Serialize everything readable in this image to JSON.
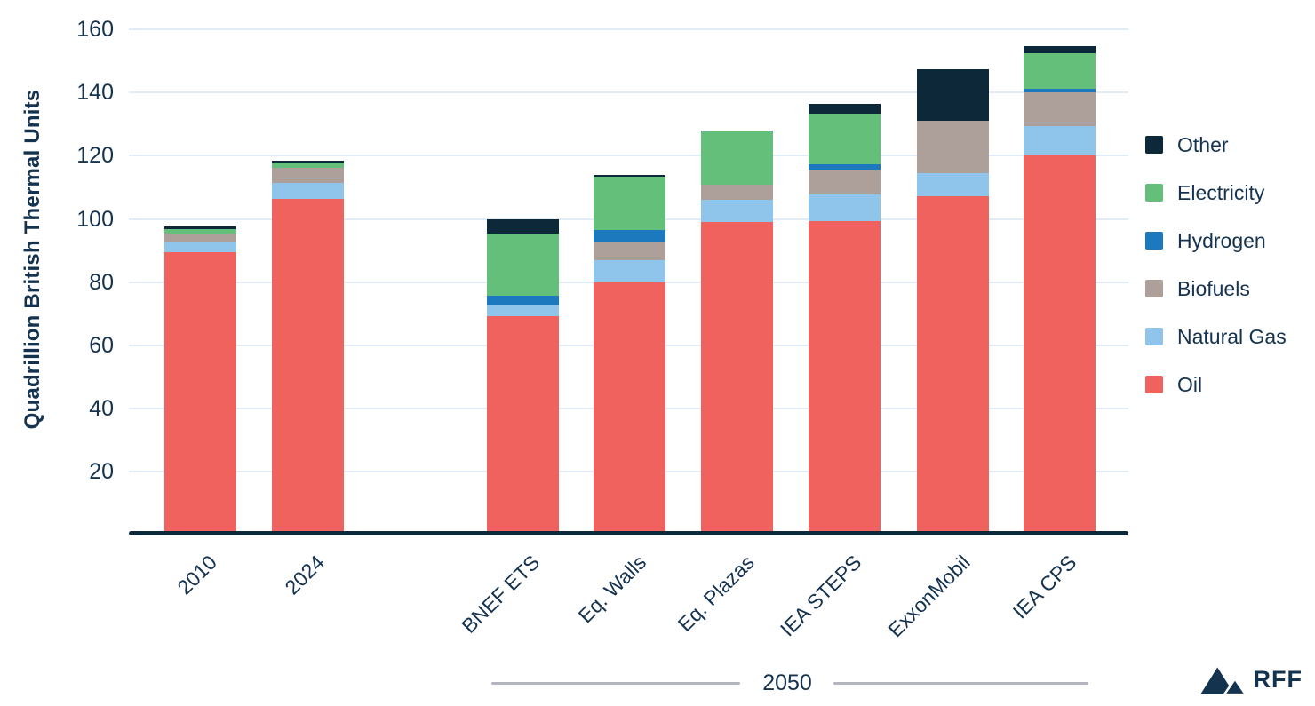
{
  "chart_data": {
    "type": "bar",
    "stacked": true,
    "title": "",
    "xlabel": "",
    "ylabel": "Quadrillion British Thermal Units",
    "ylim": [
      0,
      160
    ],
    "yticks": [
      20,
      40,
      60,
      80,
      100,
      120,
      140,
      160
    ],
    "grid": true,
    "categories": [
      "2010",
      "2024",
      "BNEF ETS",
      "Eq. Walls",
      "Eq. Plazas",
      "IEA STEPS",
      "ExxonMobil",
      "IEA CPS"
    ],
    "group_label": "2050",
    "group_members": [
      "BNEF ETS",
      "Eq. Walls",
      "Eq. Plazas",
      "IEA STEPS",
      "ExxonMobil",
      "IEA CPS"
    ],
    "series": [
      {
        "name": "Oil",
        "color": "#f0625e",
        "values": [
          89.5,
          106.2,
          69.2,
          79.8,
          99.0,
          99.3,
          107.3,
          120.1
        ]
      },
      {
        "name": "Natural Gas",
        "color": "#8fc5eb",
        "values": [
          3.3,
          5.2,
          3.4,
          7.0,
          7.0,
          8.3,
          7.2,
          9.2
        ]
      },
      {
        "name": "Biofuels",
        "color": "#ada09b",
        "values": [
          2.5,
          4.7,
          0,
          6.1,
          4.9,
          8.1,
          16.6,
          10.8
        ]
      },
      {
        "name": "Hydrogen",
        "color": "#1c79be",
        "values": [
          0,
          0,
          3.0,
          3.5,
          0,
          1.6,
          0,
          1.1
        ]
      },
      {
        "name": "Electricity",
        "color": "#63bf79",
        "values": [
          1.5,
          1.8,
          19.7,
          17.0,
          16.7,
          16.1,
          0,
          11.3
        ]
      },
      {
        "name": "Other",
        "color": "#0d2838",
        "values": [
          0.8,
          0.6,
          4.7,
          0.4,
          0.5,
          3.1,
          16.4,
          2.1
        ]
      }
    ],
    "totals": [
      97.6,
      118.5,
      100.0,
      113.8,
      128.1,
      136.5,
      147.5,
      154.6
    ],
    "legend_order": [
      "Other",
      "Electricity",
      "Hydrogen",
      "Biofuels",
      "Natural Gas",
      "Oil"
    ],
    "legend_position": "right"
  },
  "colors": {
    "axis_text": "#15334f",
    "gridline": "#e1ecf7",
    "baseline": "#0d2838",
    "annotation_line": "#b2b6bc",
    "brand_navy": "#14334f"
  },
  "branding": {
    "logo_text": "RFF",
    "logo_icon": "mountains-icon"
  }
}
